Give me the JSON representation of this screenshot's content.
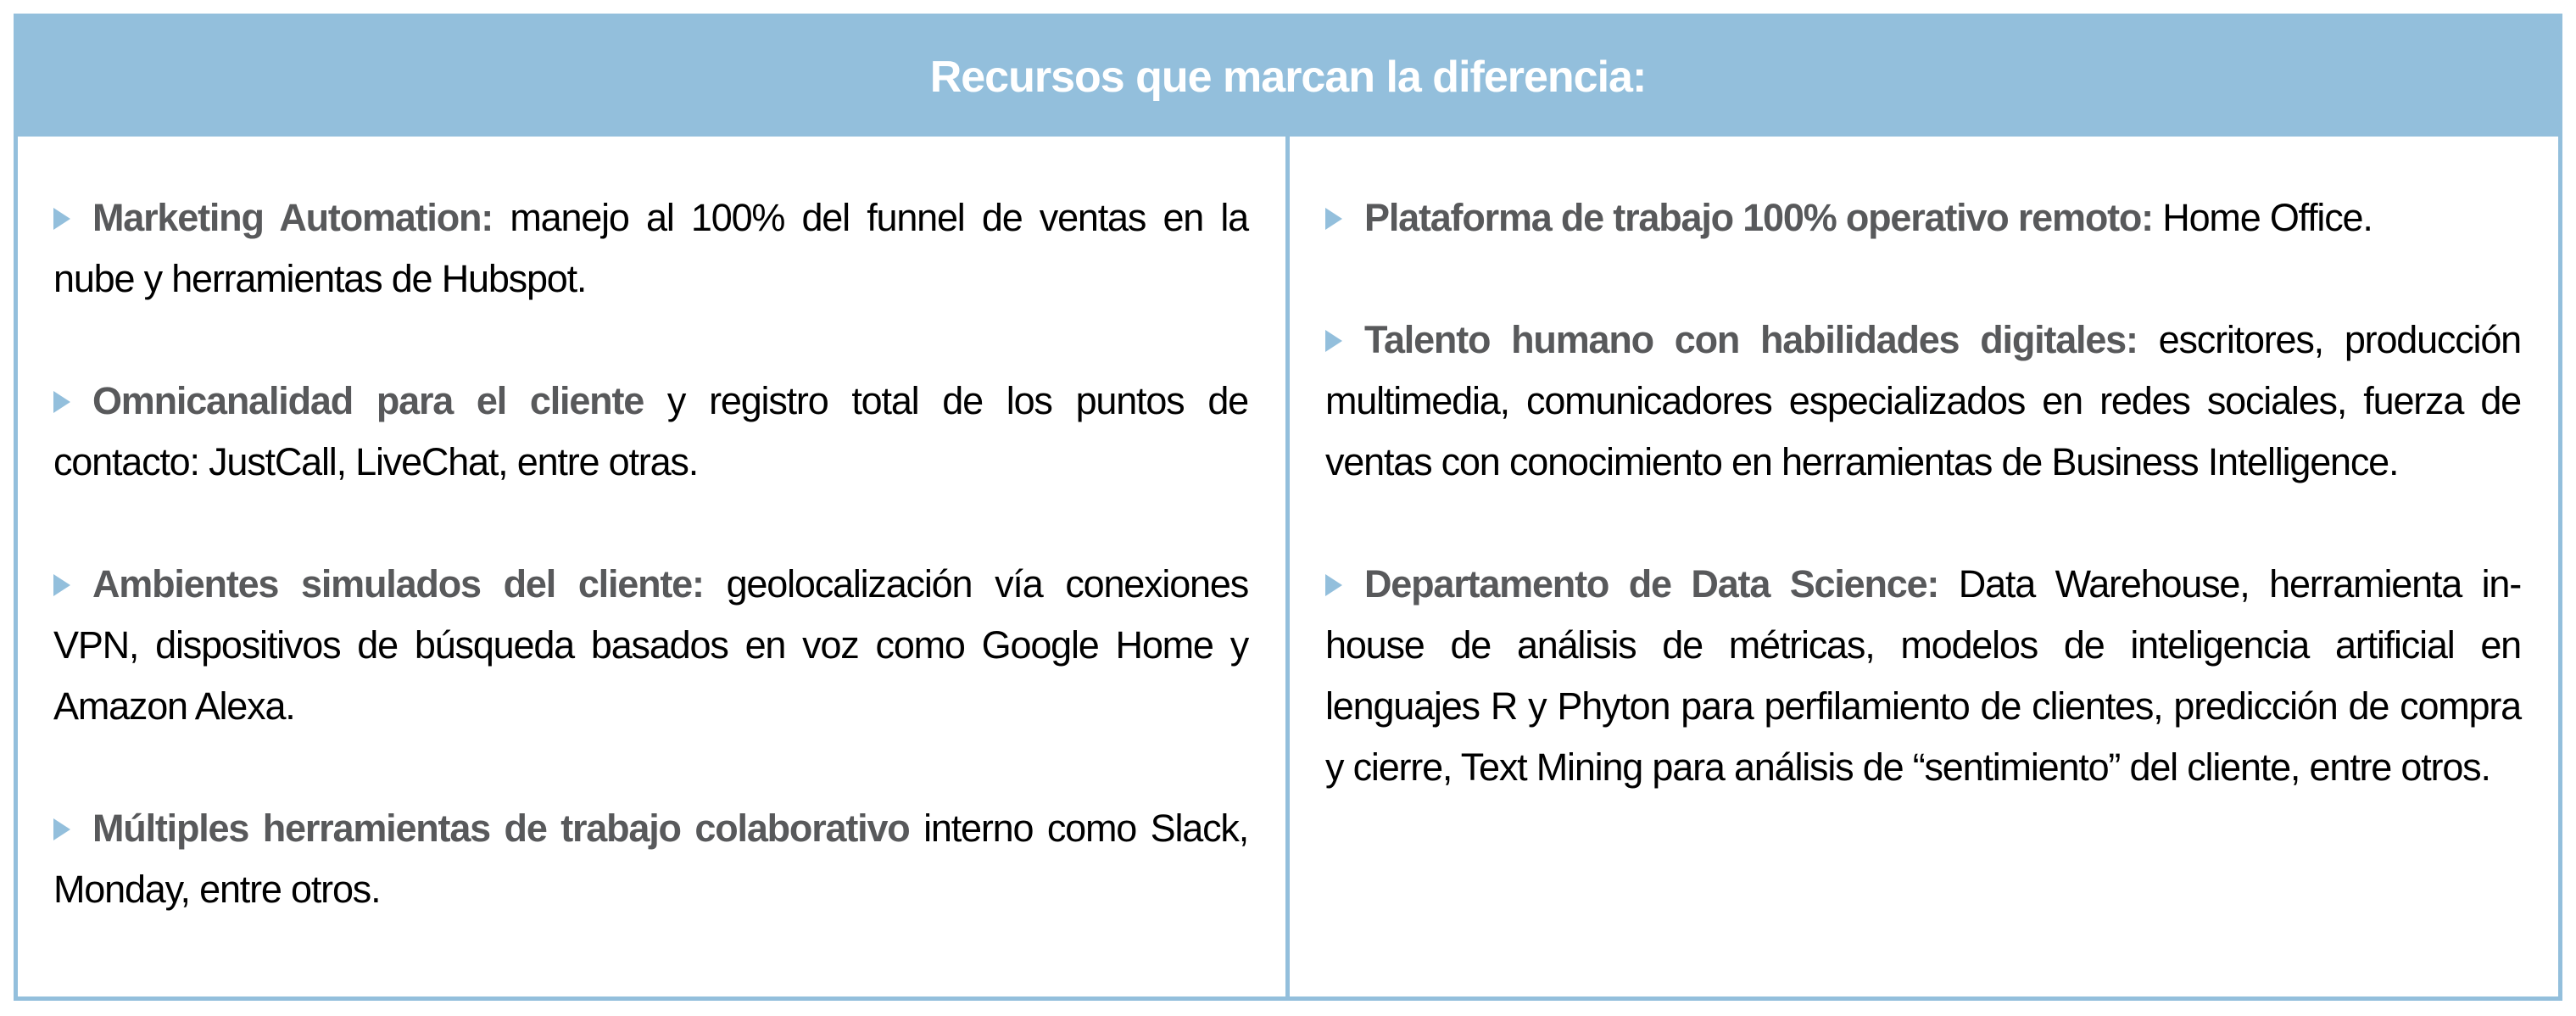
{
  "header": {
    "title": "Recursos que marcan la diferencia:"
  },
  "colors": {
    "accent": "#93bfdc",
    "bold_text": "#58595b",
    "text": "#000000"
  },
  "left_items": [
    {
      "bold": "Marketing Automation:",
      "text": " manejo al 100% del funnel de ventas en la nube y herramientas de Hubspot."
    },
    {
      "bold": "Omnicanalidad para el cliente",
      "text": " y registro total de los puntos de contacto: JustCall, LiveChat, entre otras."
    },
    {
      "bold": "Ambientes simulados del cliente:",
      "text": " geolocalización vía conexiones VPN, dispositivos de búsqueda basados en voz como Google Home y Amazon Alexa."
    },
    {
      "bold": "Múltiples herramientas de trabajo colaborativo",
      "text": " interno como Slack, Monday, entre otros."
    }
  ],
  "right_items": [
    {
      "bold": "Plataforma de trabajo 100% operativo remoto:",
      "text": " Home Office."
    },
    {
      "bold": "Talento humano con habilidades digitales:",
      "text": " escritores, producción multimedia, comunicadores especializados en redes sociales, fuerza de ventas con conocimiento en herramientas de Business Intelligence."
    },
    {
      "bold": "Departamento de Data Science:",
      "text": " Data Warehouse, herramienta in-house de análisis de métricas, modelos de inteligencia artificial en lenguajes R y Phyton para perfilamiento de clientes, predicción de compra y cierre, Text Mining para análisis de  “sentimiento” del cliente, entre otros."
    }
  ]
}
